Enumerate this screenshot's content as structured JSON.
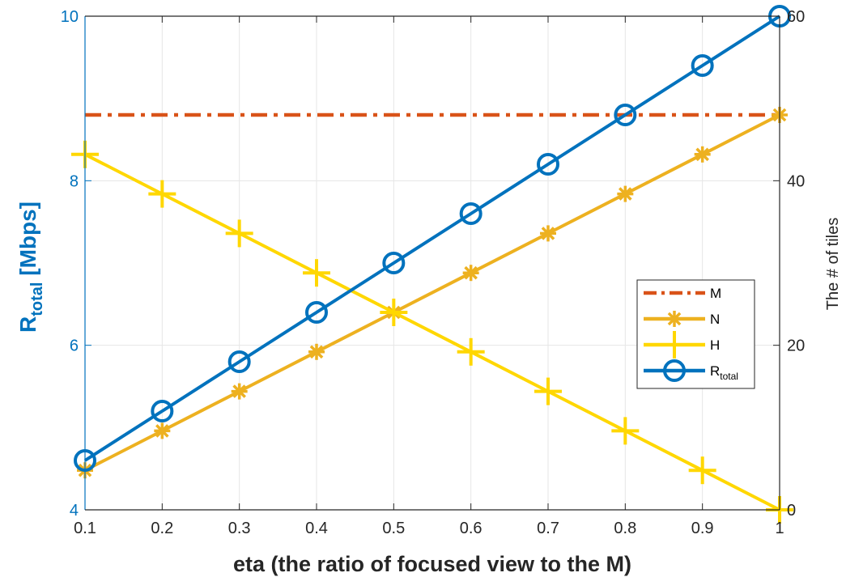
{
  "chart_data": {
    "type": "line",
    "xlabel": "eta (the ratio of focused view to the M)",
    "ylabel_left": {
      "main": "R",
      "sub": "total",
      "suffix": " [Mbps]"
    },
    "ylabel_right": "The # of tiles",
    "x_ticks": [
      "0.1",
      "0.2",
      "0.3",
      "0.4",
      "0.5",
      "0.6",
      "0.7",
      "0.8",
      "0.9",
      "1"
    ],
    "y_left_ticks": [
      "4",
      "6",
      "8",
      "10"
    ],
    "y_right_ticks": [
      "0",
      "20",
      "40",
      "60"
    ],
    "xlim": [
      0.1,
      1.0
    ],
    "ylim_left": [
      4,
      10
    ],
    "ylim_right": [
      0,
      60
    ],
    "grid": true,
    "legend_position": "center-right",
    "x": [
      0.1,
      0.2,
      0.3,
      0.4,
      0.5,
      0.6,
      0.7,
      0.8,
      0.9,
      1.0
    ],
    "series": [
      {
        "key": "M",
        "name": "M",
        "axis": "right",
        "color": "#D95319",
        "style": "dashdot",
        "marker": "none",
        "values": [
          48,
          48,
          48,
          48,
          48,
          48,
          48,
          48,
          48,
          48
        ]
      },
      {
        "key": "N",
        "name": "N",
        "axis": "right",
        "color": "#EDB120",
        "style": "solid",
        "marker": "asterisk",
        "values": [
          4.8,
          9.6,
          14.4,
          19.2,
          24,
          28.8,
          33.6,
          38.4,
          43.2,
          48
        ]
      },
      {
        "key": "H",
        "name": "H",
        "axis": "right",
        "color": "#FFD700",
        "style": "solid",
        "marker": "plus",
        "values": [
          43.2,
          38.4,
          33.6,
          28.8,
          24,
          19.2,
          14.4,
          9.6,
          4.8,
          0
        ]
      },
      {
        "key": "R",
        "name": "R",
        "name_sub": "total",
        "axis": "left",
        "color": "#0072BD",
        "style": "solid",
        "marker": "circle",
        "values": [
          4.6,
          5.2,
          5.8,
          6.4,
          7.0,
          7.6,
          8.2,
          8.8,
          9.4,
          10.0
        ]
      }
    ],
    "colors": {
      "left_axis": "#0072BD",
      "right_axis": "#000000",
      "grid": "#E6E6E6"
    }
  }
}
